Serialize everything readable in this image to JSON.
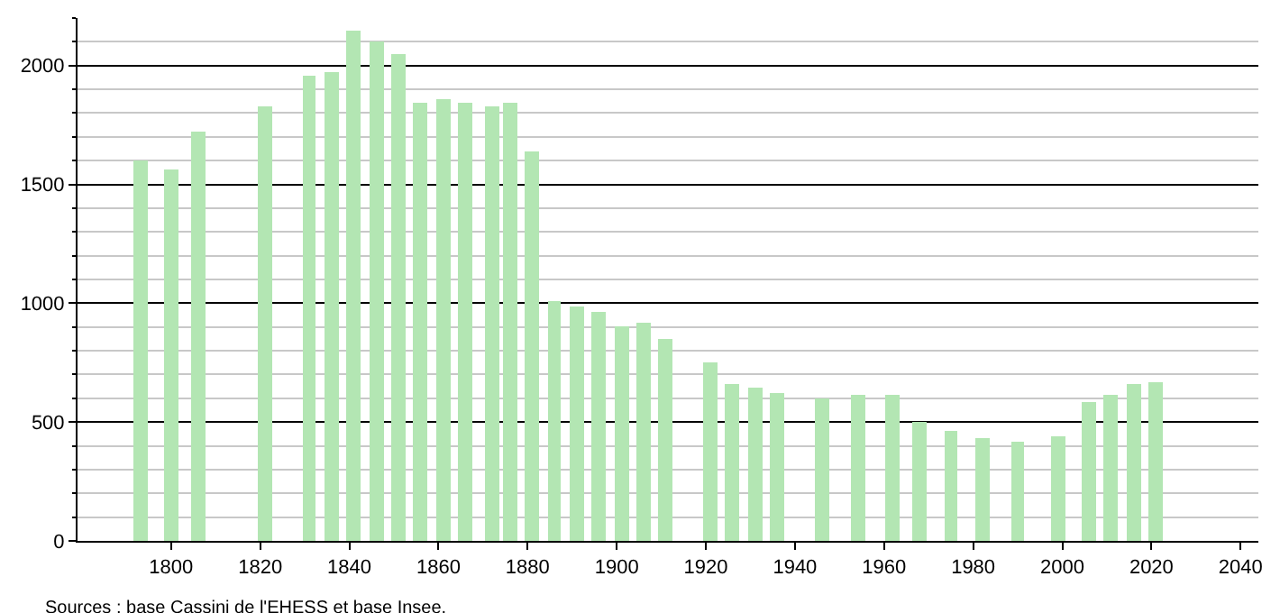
{
  "chart_data": {
    "type": "bar",
    "x": [
      1793,
      1800,
      1806,
      1821,
      1831,
      1836,
      1841,
      1846,
      1851,
      1856,
      1861,
      1866,
      1872,
      1876,
      1881,
      1886,
      1891,
      1896,
      1901,
      1906,
      1911,
      1921,
      1926,
      1931,
      1936,
      1946,
      1954,
      1962,
      1968,
      1975,
      1982,
      1990,
      1999,
      2006,
      2011,
      2016,
      2021
    ],
    "values": [
      1600,
      1565,
      1725,
      1825,
      1960,
      1975,
      2150,
      2100,
      2050,
      1845,
      1855,
      1845,
      1825,
      1840,
      1640,
      1010,
      990,
      965,
      905,
      920,
      850,
      750,
      660,
      645,
      625,
      600,
      615,
      615,
      500,
      460,
      435,
      420,
      440,
      585,
      615,
      660,
      670
    ],
    "color": "#b3e6b3",
    "xlim": [
      1779,
      2044
    ],
    "xticks": [
      1800,
      1820,
      1840,
      1860,
      1880,
      1900,
      1920,
      1940,
      1960,
      1980,
      2000,
      2020,
      2040
    ],
    "ylim": [
      0,
      2200
    ],
    "yticks": [
      0,
      {
        "value": 100,
        "label": null
      },
      {
        "value": 200,
        "label": null
      },
      {
        "value": 300,
        "label": null
      },
      {
        "value": 400,
        "label": null
      },
      500,
      {
        "value": 600,
        "label": null
      },
      {
        "value": 700,
        "label": null
      },
      {
        "value": 800,
        "label": null
      },
      {
        "value": 900,
        "label": null
      },
      1000,
      {
        "value": 1100,
        "label": null
      },
      {
        "value": 1200,
        "label": null
      },
      {
        "value": 1300,
        "label": null
      },
      {
        "value": 1400,
        "label": null
      },
      1500,
      {
        "value": 1600,
        "label": null
      },
      {
        "value": 1700,
        "label": null
      },
      {
        "value": 1800,
        "label": null
      },
      {
        "value": 1900,
        "label": null
      },
      2000,
      {
        "value": 2100,
        "label": null
      },
      {
        "value": 2200,
        "label": null
      }
    ],
    "grid": "y",
    "annotations": [
      "Sources : base Cassini de l'EHESS et base Insee."
    ]
  }
}
